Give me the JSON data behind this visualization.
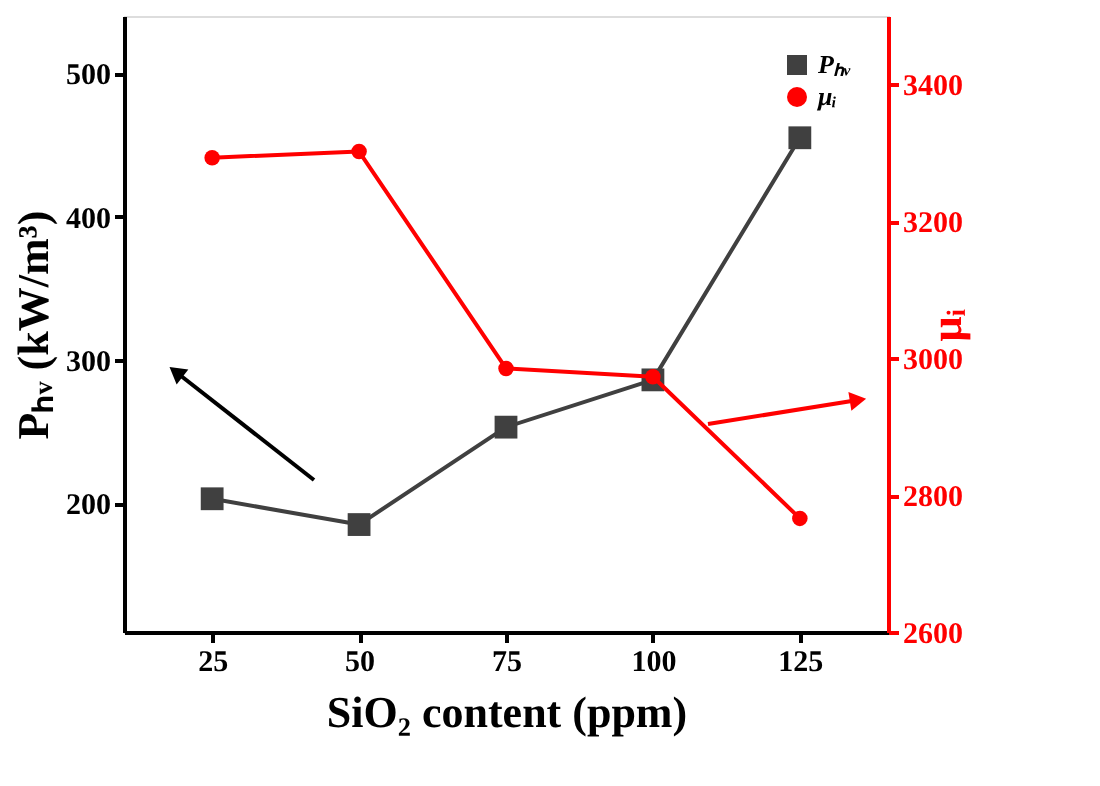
{
  "chart_data": {
    "type": "line",
    "xlabel": "SiO₂ content (ppm)",
    "ylabel": "Pₕᵥ (kW/m³)",
    "y2label": "μᵢ",
    "x": [
      25,
      50,
      75,
      100,
      125
    ],
    "series": [
      {
        "name": "Pₕᵥ",
        "color": "#404040",
        "marker": "square",
        "values": [
          203,
          185,
          253,
          286,
          455
        ]
      },
      {
        "name": "μᵢ",
        "color": "#ff0000",
        "marker": "circle",
        "axis": "y2",
        "values": [
          3293,
          3302,
          2985,
          2973,
          2766
        ]
      }
    ],
    "xlim": [
      10,
      140
    ],
    "xticks": [
      25,
      50,
      75,
      100,
      125
    ],
    "ylim": [
      110,
      540
    ],
    "yticks": [
      200,
      300,
      400,
      500
    ],
    "y2lim": [
      2600,
      3500
    ],
    "y2ticks": [
      2600,
      2800,
      3000,
      3200,
      3400
    ],
    "grid": false,
    "legend": "top right",
    "line_style": "solid"
  }
}
